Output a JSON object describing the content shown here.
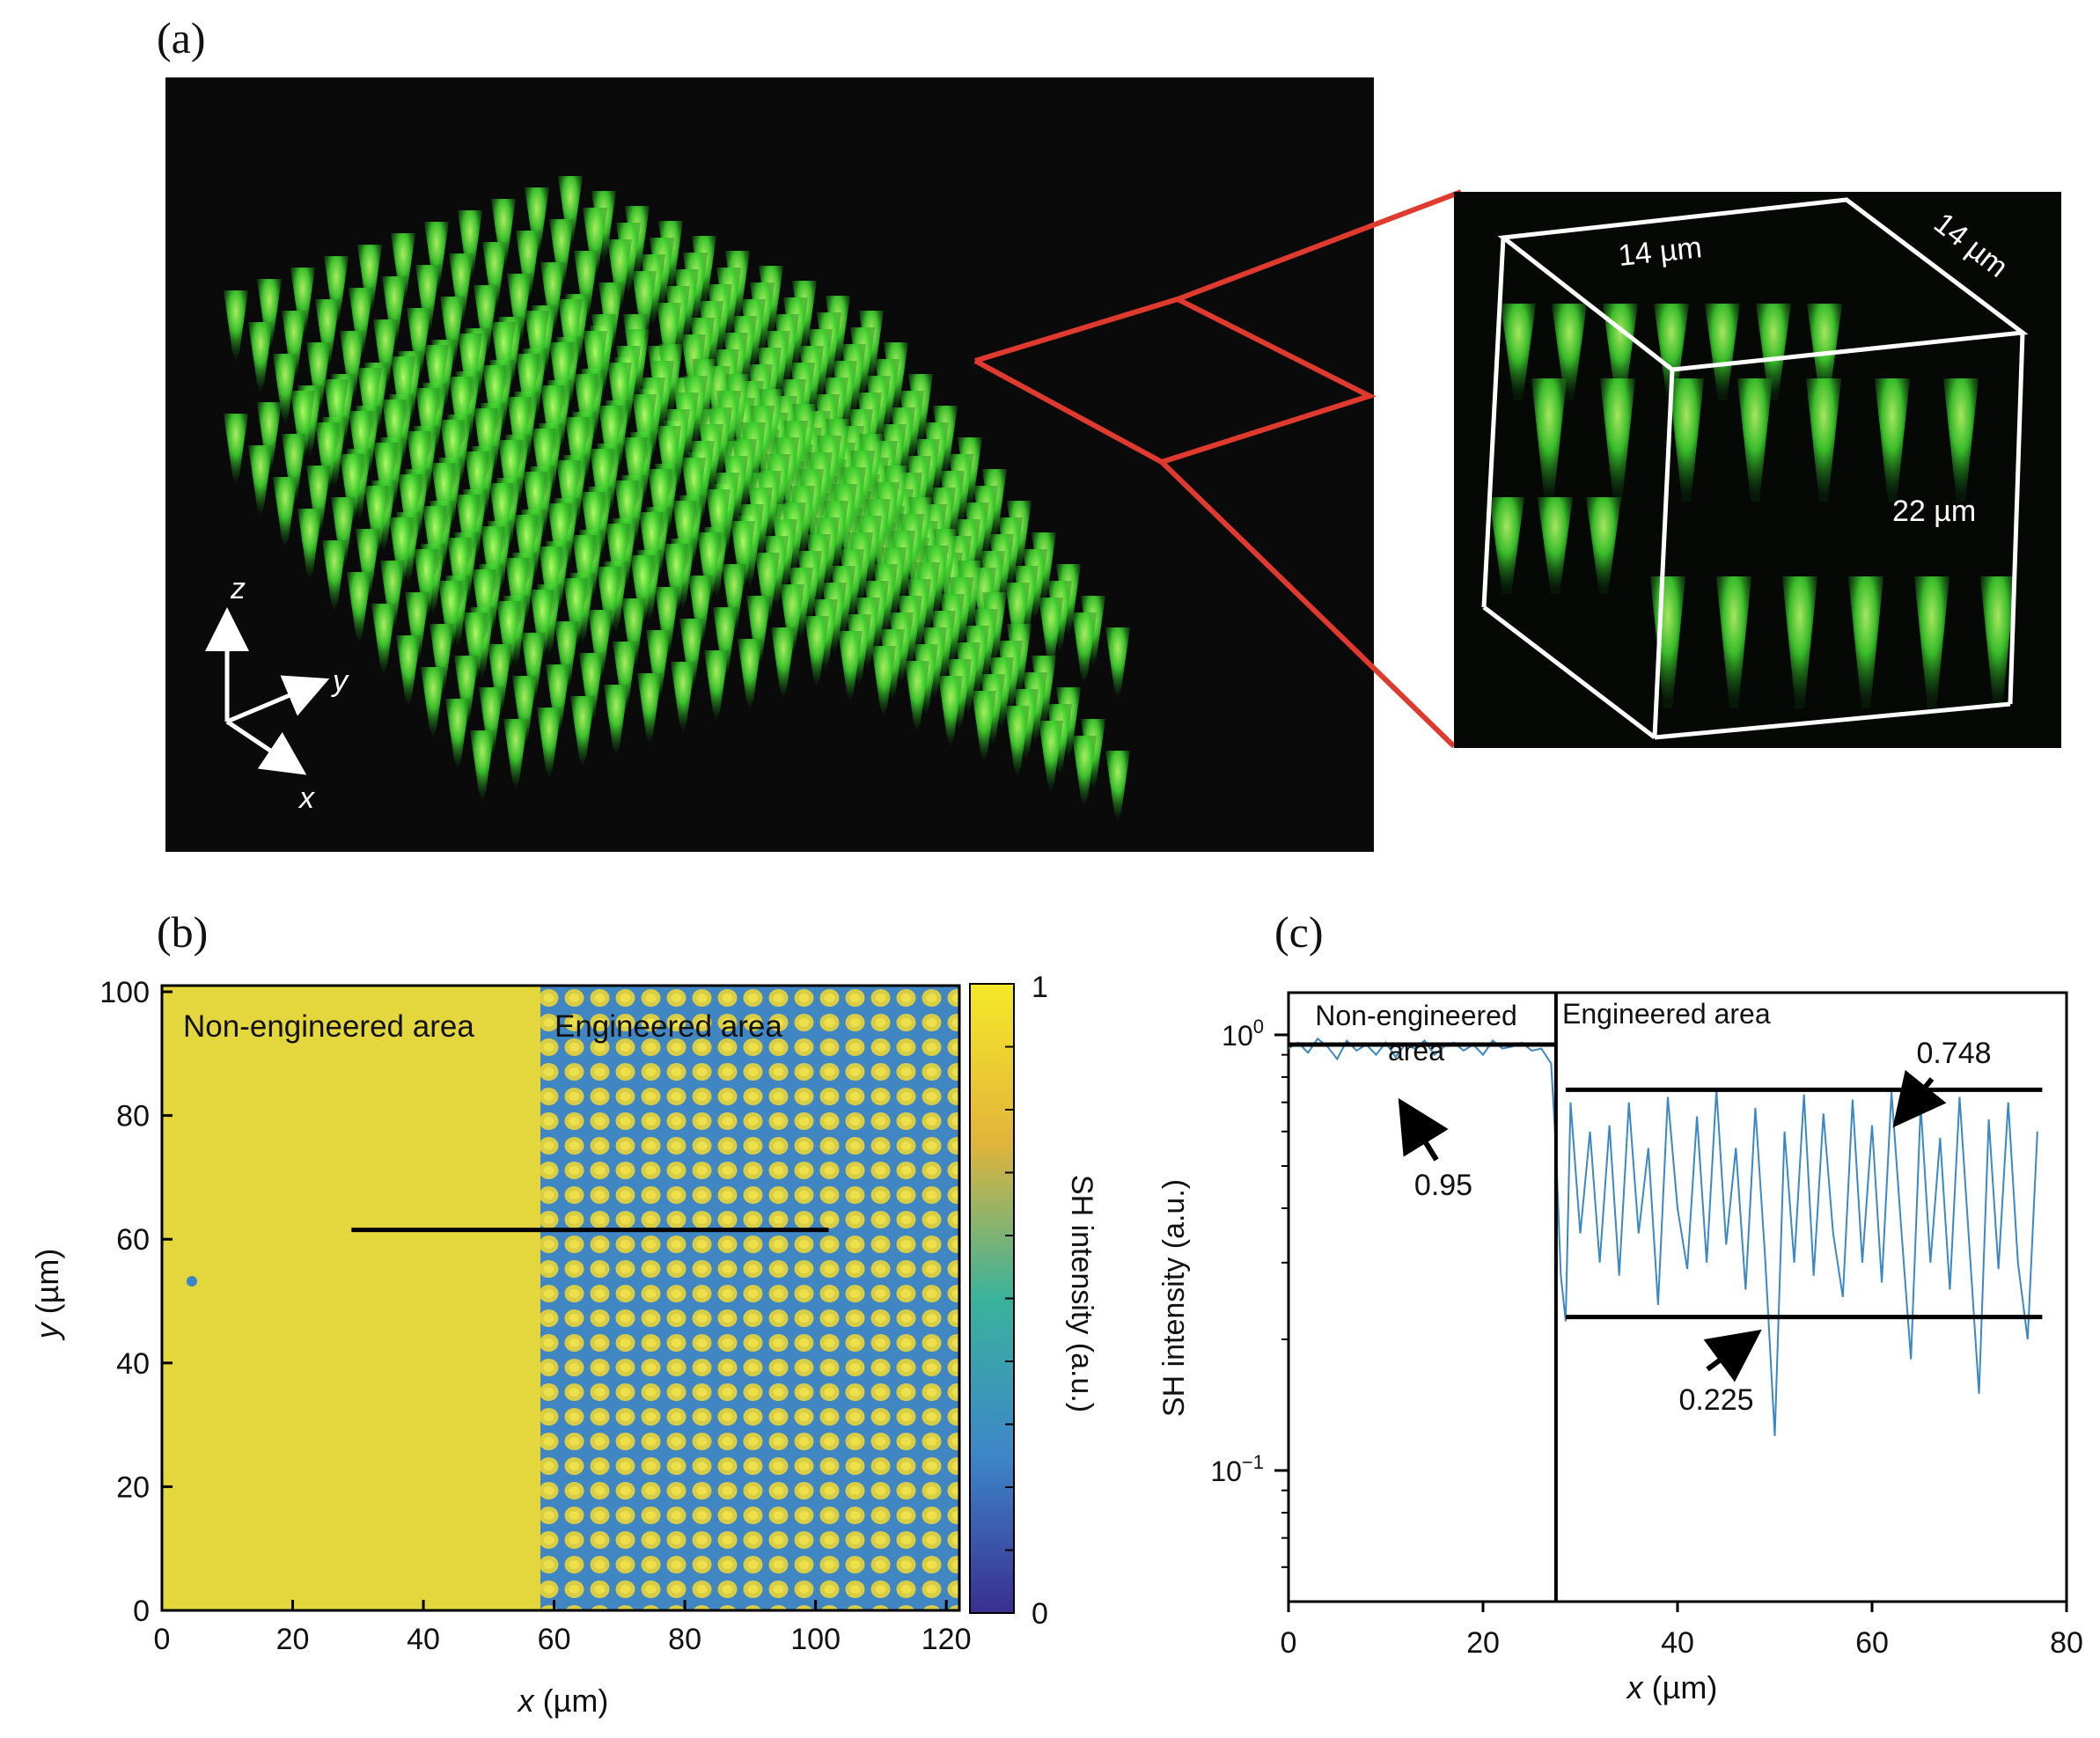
{
  "panels": {
    "a": {
      "label": "(a)",
      "axes": {
        "z": "z",
        "y": "y",
        "x": "x"
      },
      "inset_labels": {
        "width": "14 µm",
        "depth": "14 µm",
        "height": "22 µm"
      },
      "colors": {
        "background": "#0a0a0a",
        "glow": "#39d42e",
        "highlight": "#e03a2e",
        "box": "#ffffff"
      }
    },
    "b": {
      "label": "(b)",
      "region_left": "Non-engineered area",
      "region_right": "Engineered area",
      "xlabel_var": "x",
      "xlabel_unit": "(µm)",
      "ylabel_var": "y",
      "ylabel_unit": "(µm)",
      "colorbar_label": "SH intensity (a.u.)",
      "colorbar_ticks": [
        "1",
        "0"
      ],
      "colors": {
        "yellow": "#e7d93c",
        "blue": "#3e86c4"
      }
    },
    "c": {
      "label": "(c)",
      "region_left_line1": "Non-engineered",
      "region_left_line2": "area",
      "region_right": "Engineered area",
      "ylabel": "SH intensity (a.u.)",
      "xlabel_var": "x",
      "xlabel_unit": "(µm)",
      "annotations": [
        "0.95",
        "0.748",
        "0.225"
      ],
      "colors": {
        "trace": "#3b88c6",
        "line": "#000000"
      }
    }
  },
  "chart_data": [
    {
      "type": "heatmap",
      "xlabel": "x (µm)",
      "ylabel": "y (µm)",
      "xlim": [
        0,
        122
      ],
      "ylim": [
        0,
        101
      ],
      "x_ticks": [
        0,
        20,
        40,
        60,
        80,
        100,
        120
      ],
      "y_ticks": [
        0,
        20,
        40,
        60,
        80,
        100
      ],
      "colorbar": {
        "label": "SH intensity (a.u.)",
        "range": [
          0,
          1
        ]
      },
      "regions": [
        {
          "name": "Non-engineered area",
          "x_range": [
            0,
            58
          ]
        },
        {
          "name": "Engineered area",
          "x_range": [
            58,
            122
          ]
        }
      ],
      "line_profile": {
        "x_start": 29,
        "x_end": 102,
        "y": 61.5
      }
    },
    {
      "type": "line",
      "xlabel": "x (µm)",
      "ylabel": "SH intensity (a.u.)",
      "xlim": [
        0,
        80
      ],
      "ylim": [
        0.05,
        1.25
      ],
      "yscale": "log",
      "x_ticks": [
        0,
        20,
        40,
        60,
        80
      ],
      "y_ticks": [
        "10^0",
        "10^-1"
      ],
      "divider_x": 27.5,
      "levels": [
        {
          "label": "0.95",
          "value": 0.95,
          "x_range": [
            0,
            27.5
          ]
        },
        {
          "label": "0.748",
          "value": 0.748,
          "x_range": [
            28.5,
            77.5
          ]
        },
        {
          "label": "0.225",
          "value": 0.225,
          "x_range": [
            28.5,
            77.5
          ]
        }
      ],
      "series": [
        {
          "x": [
            0,
            1,
            2,
            3,
            4,
            5,
            6,
            7,
            8,
            9,
            10,
            11,
            12,
            13,
            14,
            15,
            16,
            17,
            18,
            19,
            20,
            21,
            22,
            23,
            24,
            25,
            26,
            27,
            27.5,
            28,
            28.5,
            29,
            30,
            31,
            32,
            33,
            34,
            35,
            36,
            37,
            38,
            39,
            40,
            41,
            42,
            43,
            44,
            45,
            46,
            47,
            48,
            49,
            50,
            51,
            52,
            53,
            54,
            55,
            56,
            57,
            58,
            59,
            60,
            61,
            62,
            63,
            64,
            65,
            66,
            67,
            68,
            69,
            70,
            71,
            72,
            73,
            74,
            75,
            76,
            77
          ],
          "values": [
            0.93,
            0.96,
            0.91,
            0.98,
            0.94,
            0.88,
            0.97,
            0.92,
            0.95,
            0.9,
            0.96,
            0.89,
            0.95,
            0.93,
            0.97,
            0.9,
            0.94,
            0.96,
            0.92,
            0.95,
            0.9,
            0.97,
            0.93,
            0.94,
            0.96,
            0.92,
            0.93,
            0.86,
            0.55,
            0.28,
            0.22,
            0.7,
            0.35,
            0.6,
            0.3,
            0.62,
            0.28,
            0.7,
            0.35,
            0.55,
            0.24,
            0.72,
            0.4,
            0.29,
            0.65,
            0.3,
            0.75,
            0.33,
            0.55,
            0.26,
            0.68,
            0.31,
            0.12,
            0.6,
            0.3,
            0.73,
            0.28,
            0.66,
            0.35,
            0.25,
            0.71,
            0.3,
            0.62,
            0.27,
            0.74,
            0.36,
            0.18,
            0.69,
            0.3,
            0.58,
            0.26,
            0.72,
            0.33,
            0.15,
            0.64,
            0.29,
            0.7,
            0.3,
            0.2,
            0.6
          ]
        }
      ]
    }
  ]
}
